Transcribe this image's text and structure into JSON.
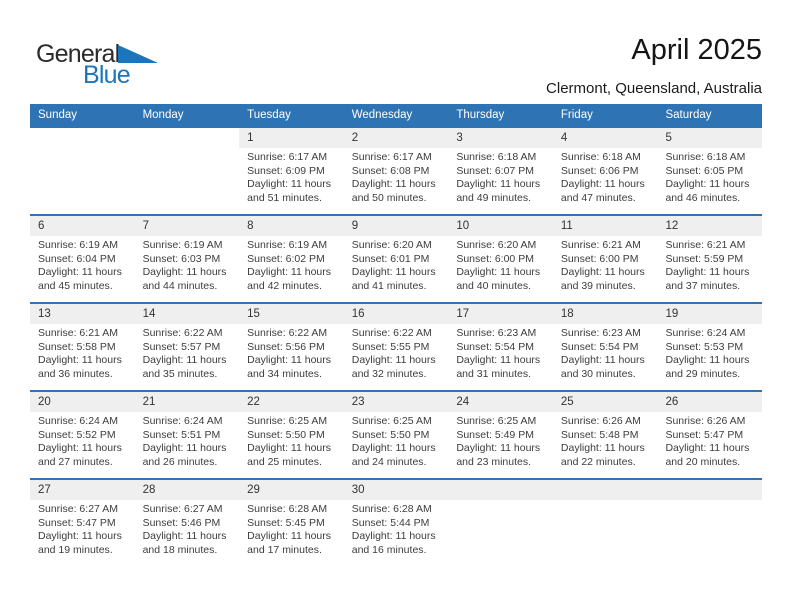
{
  "logo": {
    "general": "General",
    "blue": "Blue"
  },
  "header": {
    "title": "April 2025",
    "subtitle": "Clermont, Queensland, Australia"
  },
  "colors": {
    "header_blue": "#2e74b5",
    "row_border_blue": "#2e74b5",
    "band_gray": "#efefef",
    "logo_blue": "#1b75bc"
  },
  "calendar": {
    "day_headers": [
      "Sunday",
      "Monday",
      "Tuesday",
      "Wednesday",
      "Thursday",
      "Friday",
      "Saturday"
    ],
    "weeks": [
      {
        "empty_band": "hidden",
        "days": [
          null,
          null,
          {
            "date": "1",
            "lines": [
              "Sunrise: 6:17 AM",
              "Sunset: 6:09 PM",
              "Daylight: 11 hours",
              "and 51 minutes."
            ]
          },
          {
            "date": "2",
            "lines": [
              "Sunrise: 6:17 AM",
              "Sunset: 6:08 PM",
              "Daylight: 11 hours",
              "and 50 minutes."
            ]
          },
          {
            "date": "3",
            "lines": [
              "Sunrise: 6:18 AM",
              "Sunset: 6:07 PM",
              "Daylight: 11 hours",
              "and 49 minutes."
            ]
          },
          {
            "date": "4",
            "lines": [
              "Sunrise: 6:18 AM",
              "Sunset: 6:06 PM",
              "Daylight: 11 hours",
              "and 47 minutes."
            ]
          },
          {
            "date": "5",
            "lines": [
              "Sunrise: 6:18 AM",
              "Sunset: 6:05 PM",
              "Daylight: 11 hours",
              "and 46 minutes."
            ]
          }
        ]
      },
      {
        "empty_band": "shown",
        "days": [
          {
            "date": "6",
            "lines": [
              "Sunrise: 6:19 AM",
              "Sunset: 6:04 PM",
              "Daylight: 11 hours",
              "and 45 minutes."
            ]
          },
          {
            "date": "7",
            "lines": [
              "Sunrise: 6:19 AM",
              "Sunset: 6:03 PM",
              "Daylight: 11 hours",
              "and 44 minutes."
            ]
          },
          {
            "date": "8",
            "lines": [
              "Sunrise: 6:19 AM",
              "Sunset: 6:02 PM",
              "Daylight: 11 hours",
              "and 42 minutes."
            ]
          },
          {
            "date": "9",
            "lines": [
              "Sunrise: 6:20 AM",
              "Sunset: 6:01 PM",
              "Daylight: 11 hours",
              "and 41 minutes."
            ]
          },
          {
            "date": "10",
            "lines": [
              "Sunrise: 6:20 AM",
              "Sunset: 6:00 PM",
              "Daylight: 11 hours",
              "and 40 minutes."
            ]
          },
          {
            "date": "11",
            "lines": [
              "Sunrise: 6:21 AM",
              "Sunset: 6:00 PM",
              "Daylight: 11 hours",
              "and 39 minutes."
            ]
          },
          {
            "date": "12",
            "lines": [
              "Sunrise: 6:21 AM",
              "Sunset: 5:59 PM",
              "Daylight: 11 hours",
              "and 37 minutes."
            ]
          }
        ]
      },
      {
        "empty_band": "shown",
        "days": [
          {
            "date": "13",
            "lines": [
              "Sunrise: 6:21 AM",
              "Sunset: 5:58 PM",
              "Daylight: 11 hours",
              "and 36 minutes."
            ]
          },
          {
            "date": "14",
            "lines": [
              "Sunrise: 6:22 AM",
              "Sunset: 5:57 PM",
              "Daylight: 11 hours",
              "and 35 minutes."
            ]
          },
          {
            "date": "15",
            "lines": [
              "Sunrise: 6:22 AM",
              "Sunset: 5:56 PM",
              "Daylight: 11 hours",
              "and 34 minutes."
            ]
          },
          {
            "date": "16",
            "lines": [
              "Sunrise: 6:22 AM",
              "Sunset: 5:55 PM",
              "Daylight: 11 hours",
              "and 32 minutes."
            ]
          },
          {
            "date": "17",
            "lines": [
              "Sunrise: 6:23 AM",
              "Sunset: 5:54 PM",
              "Daylight: 11 hours",
              "and 31 minutes."
            ]
          },
          {
            "date": "18",
            "lines": [
              "Sunrise: 6:23 AM",
              "Sunset: 5:54 PM",
              "Daylight: 11 hours",
              "and 30 minutes."
            ]
          },
          {
            "date": "19",
            "lines": [
              "Sunrise: 6:24 AM",
              "Sunset: 5:53 PM",
              "Daylight: 11 hours",
              "and 29 minutes."
            ]
          }
        ]
      },
      {
        "empty_band": "shown",
        "days": [
          {
            "date": "20",
            "lines": [
              "Sunrise: 6:24 AM",
              "Sunset: 5:52 PM",
              "Daylight: 11 hours",
              "and 27 minutes."
            ]
          },
          {
            "date": "21",
            "lines": [
              "Sunrise: 6:24 AM",
              "Sunset: 5:51 PM",
              "Daylight: 11 hours",
              "and 26 minutes."
            ]
          },
          {
            "date": "22",
            "lines": [
              "Sunrise: 6:25 AM",
              "Sunset: 5:50 PM",
              "Daylight: 11 hours",
              "and 25 minutes."
            ]
          },
          {
            "date": "23",
            "lines": [
              "Sunrise: 6:25 AM",
              "Sunset: 5:50 PM",
              "Daylight: 11 hours",
              "and 24 minutes."
            ]
          },
          {
            "date": "24",
            "lines": [
              "Sunrise: 6:25 AM",
              "Sunset: 5:49 PM",
              "Daylight: 11 hours",
              "and 23 minutes."
            ]
          },
          {
            "date": "25",
            "lines": [
              "Sunrise: 6:26 AM",
              "Sunset: 5:48 PM",
              "Daylight: 11 hours",
              "and 22 minutes."
            ]
          },
          {
            "date": "26",
            "lines": [
              "Sunrise: 6:26 AM",
              "Sunset: 5:47 PM",
              "Daylight: 11 hours",
              "and 20 minutes."
            ]
          }
        ]
      },
      {
        "empty_band": "shown",
        "days": [
          {
            "date": "27",
            "lines": [
              "Sunrise: 6:27 AM",
              "Sunset: 5:47 PM",
              "Daylight: 11 hours",
              "and 19 minutes."
            ]
          },
          {
            "date": "28",
            "lines": [
              "Sunrise: 6:27 AM",
              "Sunset: 5:46 PM",
              "Daylight: 11 hours",
              "and 18 minutes."
            ]
          },
          {
            "date": "29",
            "lines": [
              "Sunrise: 6:28 AM",
              "Sunset: 5:45 PM",
              "Daylight: 11 hours",
              "and 17 minutes."
            ]
          },
          {
            "date": "30",
            "lines": [
              "Sunrise: 6:28 AM",
              "Sunset: 5:44 PM",
              "Daylight: 11 hours",
              "and 16 minutes."
            ]
          },
          null,
          null,
          null
        ]
      }
    ]
  }
}
